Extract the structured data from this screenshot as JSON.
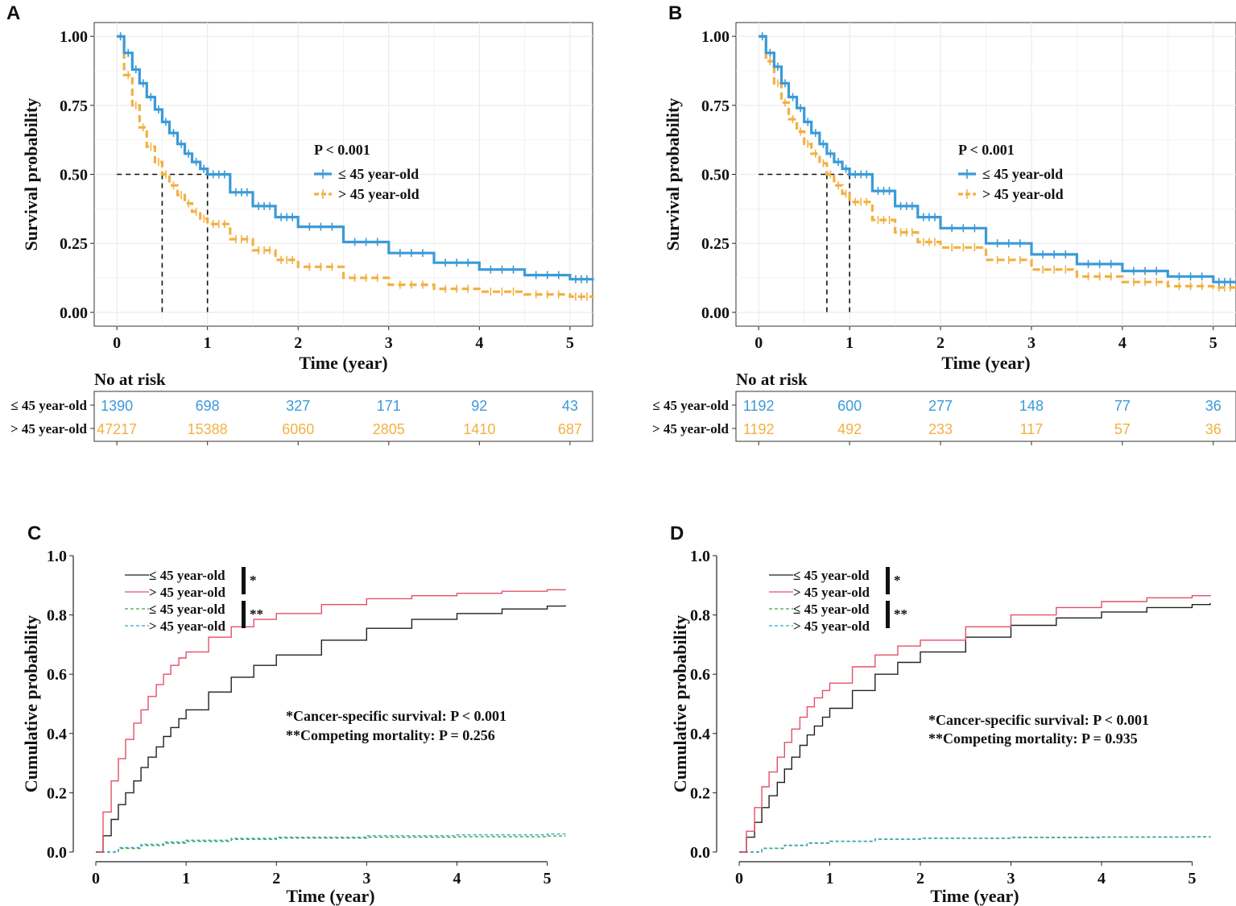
{
  "colors": {
    "blue": "#3b9ad7",
    "orange": "#f3b042",
    "black": "#222222",
    "red": "#e4506a",
    "green": "#3aa83a",
    "teal": "#35a6c4",
    "grid": "#ebebeb"
  },
  "chart_data": [
    {
      "panel": "A",
      "type": "line",
      "subtype": "kaplan-meier",
      "xlabel": "Time (year)",
      "ylabel": "Survival probability",
      "xlim": [
        -0.25,
        5.25
      ],
      "ylim": [
        -0.05,
        1.05
      ],
      "xticks": [
        0,
        1,
        2,
        3,
        4,
        5
      ],
      "yticks": [
        0,
        0.25,
        0.5,
        0.75,
        1.0
      ],
      "ytick_labels": [
        "0.00",
        "0.25",
        "0.50",
        "0.75",
        "1.00"
      ],
      "grid": true,
      "legend": {
        "title": "P < 0.001",
        "position": "center-right"
      },
      "median_lines": [
        0.5,
        1.0
      ],
      "series": [
        {
          "name": "≤ 45 year-old",
          "color": "blue",
          "dash": false,
          "x": [
            0,
            0.08,
            0.17,
            0.25,
            0.33,
            0.42,
            0.5,
            0.58,
            0.67,
            0.75,
            0.83,
            0.92,
            1.0,
            1.25,
            1.5,
            1.75,
            2.0,
            2.5,
            3.0,
            3.5,
            4.0,
            4.5,
            5.0,
            5.25
          ],
          "y": [
            1.0,
            0.94,
            0.88,
            0.83,
            0.78,
            0.735,
            0.69,
            0.65,
            0.61,
            0.575,
            0.545,
            0.52,
            0.5,
            0.435,
            0.385,
            0.345,
            0.31,
            0.255,
            0.215,
            0.18,
            0.155,
            0.135,
            0.12,
            0.115
          ]
        },
        {
          "name": "> 45 year-old",
          "color": "orange",
          "dash": true,
          "x": [
            0,
            0.08,
            0.17,
            0.25,
            0.33,
            0.42,
            0.5,
            0.58,
            0.67,
            0.75,
            0.83,
            0.92,
            1.0,
            1.25,
            1.5,
            1.75,
            2.0,
            2.5,
            3.0,
            3.5,
            4.0,
            4.5,
            5.0,
            5.25
          ],
          "y": [
            1.0,
            0.86,
            0.75,
            0.67,
            0.6,
            0.545,
            0.5,
            0.46,
            0.425,
            0.395,
            0.365,
            0.34,
            0.32,
            0.265,
            0.225,
            0.19,
            0.165,
            0.125,
            0.1,
            0.085,
            0.075,
            0.065,
            0.057,
            0.053
          ]
        }
      ],
      "risk_table": {
        "title": "No at risk",
        "times": [
          0,
          1,
          2,
          3,
          4,
          5
        ],
        "rows": [
          {
            "label": "≤ 45 year-old",
            "color": "blue",
            "values": [
              "1390",
              "698",
              "327",
              "171",
              "92",
              "43"
            ]
          },
          {
            "label": "> 45 year-old",
            "color": "orange",
            "values": [
              "47217",
              "15388",
              "6060",
              "2805",
              "1410",
              "687"
            ]
          }
        ]
      }
    },
    {
      "panel": "B",
      "type": "line",
      "subtype": "kaplan-meier",
      "xlabel": "Time (year)",
      "ylabel": "Survival probability",
      "xlim": [
        -0.25,
        5.25
      ],
      "ylim": [
        -0.05,
        1.05
      ],
      "xticks": [
        0,
        1,
        2,
        3,
        4,
        5
      ],
      "yticks": [
        0,
        0.25,
        0.5,
        0.75,
        1.0
      ],
      "ytick_labels": [
        "0.00",
        "0.25",
        "0.50",
        "0.75",
        "1.00"
      ],
      "grid": true,
      "legend": {
        "title": "P < 0.001",
        "position": "center-right"
      },
      "median_lines": [
        0.75,
        1.0
      ],
      "series": [
        {
          "name": "≤ 45 year-old",
          "color": "blue",
          "dash": false,
          "x": [
            0,
            0.08,
            0.17,
            0.25,
            0.33,
            0.42,
            0.5,
            0.58,
            0.67,
            0.75,
            0.83,
            0.92,
            1.0,
            1.25,
            1.5,
            1.75,
            2.0,
            2.5,
            3.0,
            3.5,
            4.0,
            4.5,
            5.0,
            5.25
          ],
          "y": [
            1.0,
            0.94,
            0.89,
            0.83,
            0.78,
            0.74,
            0.69,
            0.65,
            0.61,
            0.575,
            0.545,
            0.52,
            0.5,
            0.44,
            0.385,
            0.345,
            0.305,
            0.25,
            0.21,
            0.175,
            0.15,
            0.13,
            0.11,
            0.105
          ]
        },
        {
          "name": "> 45 year-old",
          "color": "orange",
          "dash": true,
          "x": [
            0,
            0.08,
            0.17,
            0.25,
            0.33,
            0.42,
            0.5,
            0.58,
            0.67,
            0.75,
            0.83,
            0.92,
            1.0,
            1.25,
            1.5,
            1.75,
            2.0,
            2.5,
            3.0,
            3.5,
            4.0,
            4.5,
            5.0,
            5.25
          ],
          "y": [
            1.0,
            0.91,
            0.83,
            0.76,
            0.7,
            0.655,
            0.61,
            0.575,
            0.54,
            0.5,
            0.46,
            0.43,
            0.4,
            0.335,
            0.29,
            0.255,
            0.235,
            0.19,
            0.155,
            0.13,
            0.11,
            0.095,
            0.09,
            0.087
          ]
        }
      ],
      "risk_table": {
        "title": "No at risk",
        "times": [
          0,
          1,
          2,
          3,
          4,
          5
        ],
        "rows": [
          {
            "label": "≤ 45 year-old",
            "color": "blue",
            "values": [
              "1192",
              "600",
              "277",
              "148",
              "77",
              "36"
            ]
          },
          {
            "label": "> 45 year-old",
            "color": "orange",
            "values": [
              "1192",
              "492",
              "233",
              "117",
              "57",
              "36"
            ]
          }
        ]
      }
    },
    {
      "panel": "C",
      "type": "line",
      "subtype": "cumulative-incidence",
      "xlabel": "Time (year)",
      "ylabel": "Cumulative probability",
      "xlim": [
        0,
        5.2
      ],
      "ylim": [
        0,
        1.0
      ],
      "xticks": [
        0,
        1,
        2,
        3,
        4,
        5
      ],
      "yticks": [
        0,
        0.2,
        0.4,
        0.6,
        0.8,
        1.0
      ],
      "ytick_labels": [
        "0.0",
        "0.2",
        "0.4",
        "0.6",
        "0.8",
        "1.0"
      ],
      "grid": false,
      "legend": {
        "labels": [
          "≤ 45 year-old",
          "> 45 year-old",
          "≤ 45 year-old",
          "> 45 year-old"
        ],
        "group_marks": [
          "*",
          "**"
        ],
        "position": "top-left"
      },
      "annotations": [
        "*Cancer-specific survival: P < 0.001",
        "**Competing mortality: P = 0.256"
      ],
      "series": [
        {
          "name": "≤ 45 year-old (cancer-specific)",
          "color": "black",
          "dash": false,
          "x": [
            0,
            0.08,
            0.17,
            0.25,
            0.33,
            0.42,
            0.5,
            0.58,
            0.67,
            0.75,
            0.83,
            0.92,
            1.0,
            1.25,
            1.5,
            1.75,
            2.0,
            2.5,
            3.0,
            3.5,
            4.0,
            4.5,
            5.0,
            5.2
          ],
          "y": [
            0,
            0.055,
            0.11,
            0.16,
            0.2,
            0.24,
            0.285,
            0.32,
            0.355,
            0.39,
            0.42,
            0.45,
            0.48,
            0.54,
            0.59,
            0.63,
            0.665,
            0.715,
            0.755,
            0.785,
            0.805,
            0.82,
            0.83,
            0.833
          ]
        },
        {
          "name": "> 45 year-old (cancer-specific)",
          "color": "red",
          "dash": false,
          "x": [
            0,
            0.08,
            0.17,
            0.25,
            0.33,
            0.42,
            0.5,
            0.58,
            0.67,
            0.75,
            0.83,
            0.92,
            1.0,
            1.25,
            1.5,
            1.75,
            2.0,
            2.5,
            3.0,
            3.5,
            4.0,
            4.5,
            5.0,
            5.2
          ],
          "y": [
            0,
            0.135,
            0.24,
            0.315,
            0.38,
            0.435,
            0.48,
            0.525,
            0.565,
            0.6,
            0.63,
            0.655,
            0.675,
            0.725,
            0.76,
            0.785,
            0.805,
            0.835,
            0.855,
            0.865,
            0.873,
            0.88,
            0.885,
            0.887
          ]
        },
        {
          "name": "≤ 45 year-old (competing)",
          "color": "green",
          "dash": true,
          "x": [
            0,
            0.25,
            0.5,
            0.75,
            1.0,
            1.5,
            2.0,
            3.0,
            4.0,
            5.0,
            5.2
          ],
          "y": [
            0,
            0.012,
            0.022,
            0.03,
            0.036,
            0.043,
            0.047,
            0.05,
            0.052,
            0.054,
            0.055
          ]
        },
        {
          "name": "> 45 year-old (competing)",
          "color": "teal",
          "dash": true,
          "x": [
            0,
            0.25,
            0.5,
            0.75,
            1.0,
            1.5,
            2.0,
            3.0,
            4.0,
            5.0,
            5.2
          ],
          "y": [
            0,
            0.015,
            0.026,
            0.034,
            0.04,
            0.046,
            0.05,
            0.055,
            0.058,
            0.061,
            0.062
          ]
        }
      ]
    },
    {
      "panel": "D",
      "type": "line",
      "subtype": "cumulative-incidence",
      "xlabel": "Time (year)",
      "ylabel": "Cumulative probability",
      "xlim": [
        0,
        5.2
      ],
      "ylim": [
        0,
        1.0
      ],
      "xticks": [
        0,
        1,
        2,
        3,
        4,
        5
      ],
      "yticks": [
        0,
        0.2,
        0.4,
        0.6,
        0.8,
        1.0
      ],
      "ytick_labels": [
        "0.0",
        "0.2",
        "0.4",
        "0.6",
        "0.8",
        "1.0"
      ],
      "grid": false,
      "legend": {
        "labels": [
          "≤ 45 year-old",
          "> 45 year-old",
          "≤ 45 year-old",
          "> 45 year-old"
        ],
        "group_marks": [
          "*",
          "**"
        ],
        "position": "top-left"
      },
      "annotations": [
        "*Cancer-specific survival: P < 0.001",
        "**Competing mortality: P = 0.935"
      ],
      "series": [
        {
          "name": "≤ 45 year-old (cancer-specific)",
          "color": "black",
          "dash": false,
          "x": [
            0,
            0.08,
            0.17,
            0.25,
            0.33,
            0.42,
            0.5,
            0.58,
            0.67,
            0.75,
            0.83,
            0.92,
            1.0,
            1.25,
            1.5,
            1.75,
            2.0,
            2.5,
            3.0,
            3.5,
            4.0,
            4.5,
            5.0,
            5.2
          ],
          "y": [
            0,
            0.05,
            0.1,
            0.15,
            0.19,
            0.235,
            0.28,
            0.32,
            0.36,
            0.395,
            0.425,
            0.455,
            0.485,
            0.545,
            0.6,
            0.64,
            0.675,
            0.725,
            0.765,
            0.79,
            0.81,
            0.825,
            0.835,
            0.84
          ]
        },
        {
          "name": "> 45 year-old (cancer-specific)",
          "color": "red",
          "dash": false,
          "x": [
            0,
            0.08,
            0.17,
            0.25,
            0.33,
            0.42,
            0.5,
            0.58,
            0.67,
            0.75,
            0.83,
            0.92,
            1.0,
            1.25,
            1.5,
            1.75,
            2.0,
            2.5,
            3.0,
            3.5,
            4.0,
            4.5,
            5.0,
            5.2
          ],
          "y": [
            0,
            0.07,
            0.15,
            0.22,
            0.27,
            0.32,
            0.37,
            0.415,
            0.455,
            0.49,
            0.52,
            0.545,
            0.57,
            0.625,
            0.665,
            0.695,
            0.715,
            0.76,
            0.8,
            0.825,
            0.845,
            0.858,
            0.865,
            0.868
          ]
        },
        {
          "name": "≤ 45 year-old (competing)",
          "color": "green",
          "dash": true,
          "x": [
            0,
            0.25,
            0.5,
            0.75,
            1.0,
            1.5,
            2.0,
            3.0,
            4.0,
            5.0,
            5.2
          ],
          "y": [
            0,
            0.012,
            0.022,
            0.03,
            0.036,
            0.043,
            0.046,
            0.049,
            0.05,
            0.051,
            0.052
          ]
        },
        {
          "name": "> 45 year-old (competing)",
          "color": "teal",
          "dash": true,
          "x": [
            0,
            0.25,
            0.5,
            0.75,
            1.0,
            1.5,
            2.0,
            3.0,
            4.0,
            5.0,
            5.2
          ],
          "y": [
            0,
            0.013,
            0.023,
            0.031,
            0.037,
            0.044,
            0.047,
            0.05,
            0.051,
            0.052,
            0.053
          ]
        }
      ]
    }
  ]
}
